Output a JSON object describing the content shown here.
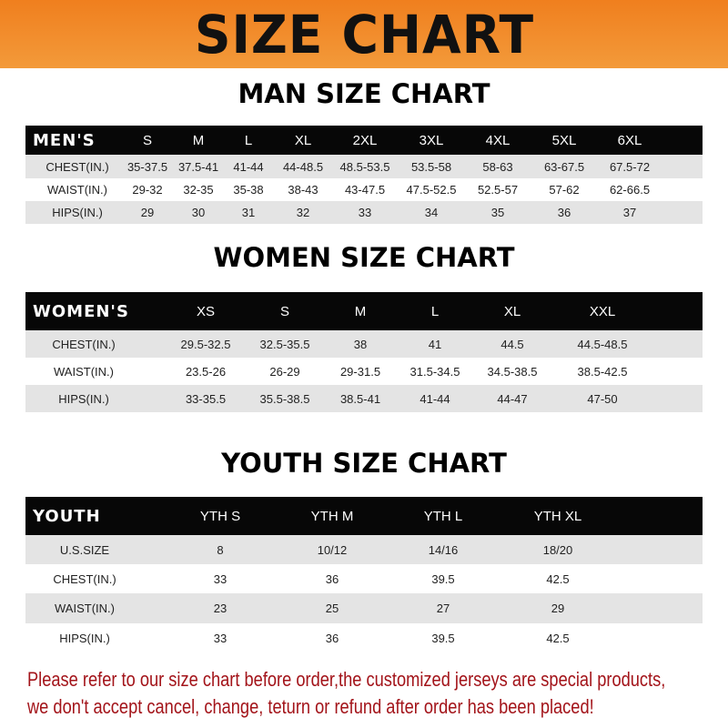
{
  "banner": {
    "title": "SIZE CHART",
    "color": "#f08a2a"
  },
  "men": {
    "title": "MAN SIZE CHART",
    "header": [
      "MEN'S",
      "S",
      "M",
      "L",
      "XL",
      "2XL",
      "3XL",
      "4XL",
      "5XL",
      "6XL"
    ],
    "rows": [
      [
        "CHEST(IN.)",
        "35-37.5",
        "37.5-41",
        "41-44",
        "44-48.5",
        "48.5-53.5",
        "53.5-58",
        "58-63",
        "63-67.5",
        "67.5-72"
      ],
      [
        "WAIST(IN.)",
        "29-32",
        "32-35",
        "35-38",
        "38-43",
        "43-47.5",
        "47.5-52.5",
        "52.5-57",
        "57-62",
        "62-66.5"
      ],
      [
        "HIPS(IN.)",
        "29",
        "30",
        "31",
        "32",
        "33",
        "34",
        "35",
        "36",
        "37"
      ]
    ]
  },
  "women": {
    "title": "WOMEN SIZE CHART",
    "header": [
      "WOMEN'S",
      "XS",
      "S",
      "M",
      "L",
      "XL",
      "XXL"
    ],
    "rows": [
      [
        "CHEST(IN.)",
        "29.5-32.5",
        "32.5-35.5",
        "38",
        "41",
        "44.5",
        "44.5-48.5"
      ],
      [
        "WAIST(IN.)",
        "23.5-26",
        "26-29",
        "29-31.5",
        "31.5-34.5",
        "34.5-38.5",
        "38.5-42.5"
      ],
      [
        "HIPS(IN.)",
        "33-35.5",
        "35.5-38.5",
        "38.5-41",
        "41-44",
        "44-47",
        "47-50"
      ]
    ]
  },
  "youth": {
    "title": "YOUTH SIZE CHART",
    "header": [
      "YOUTH",
      "YTH S",
      "YTH M",
      "YTH L",
      "YTH XL"
    ],
    "rows": [
      [
        "U.S.SIZE",
        "8",
        "10/12",
        "14/16",
        "18/20"
      ],
      [
        "CHEST(IN.)",
        "33",
        "36",
        "39.5",
        "42.5"
      ],
      [
        "WAIST(IN.)",
        "23",
        "25",
        "27",
        "29"
      ],
      [
        "HIPS(IN.)",
        "33",
        "36",
        "39.5",
        "42.5"
      ]
    ]
  },
  "notice": {
    "line1": "Please refer to our size chart before order,the customized jerseys are special products,",
    "line2": "we don't accept cancel, change, teturn or refund after order has been placed!",
    "color": "#a3141a"
  }
}
